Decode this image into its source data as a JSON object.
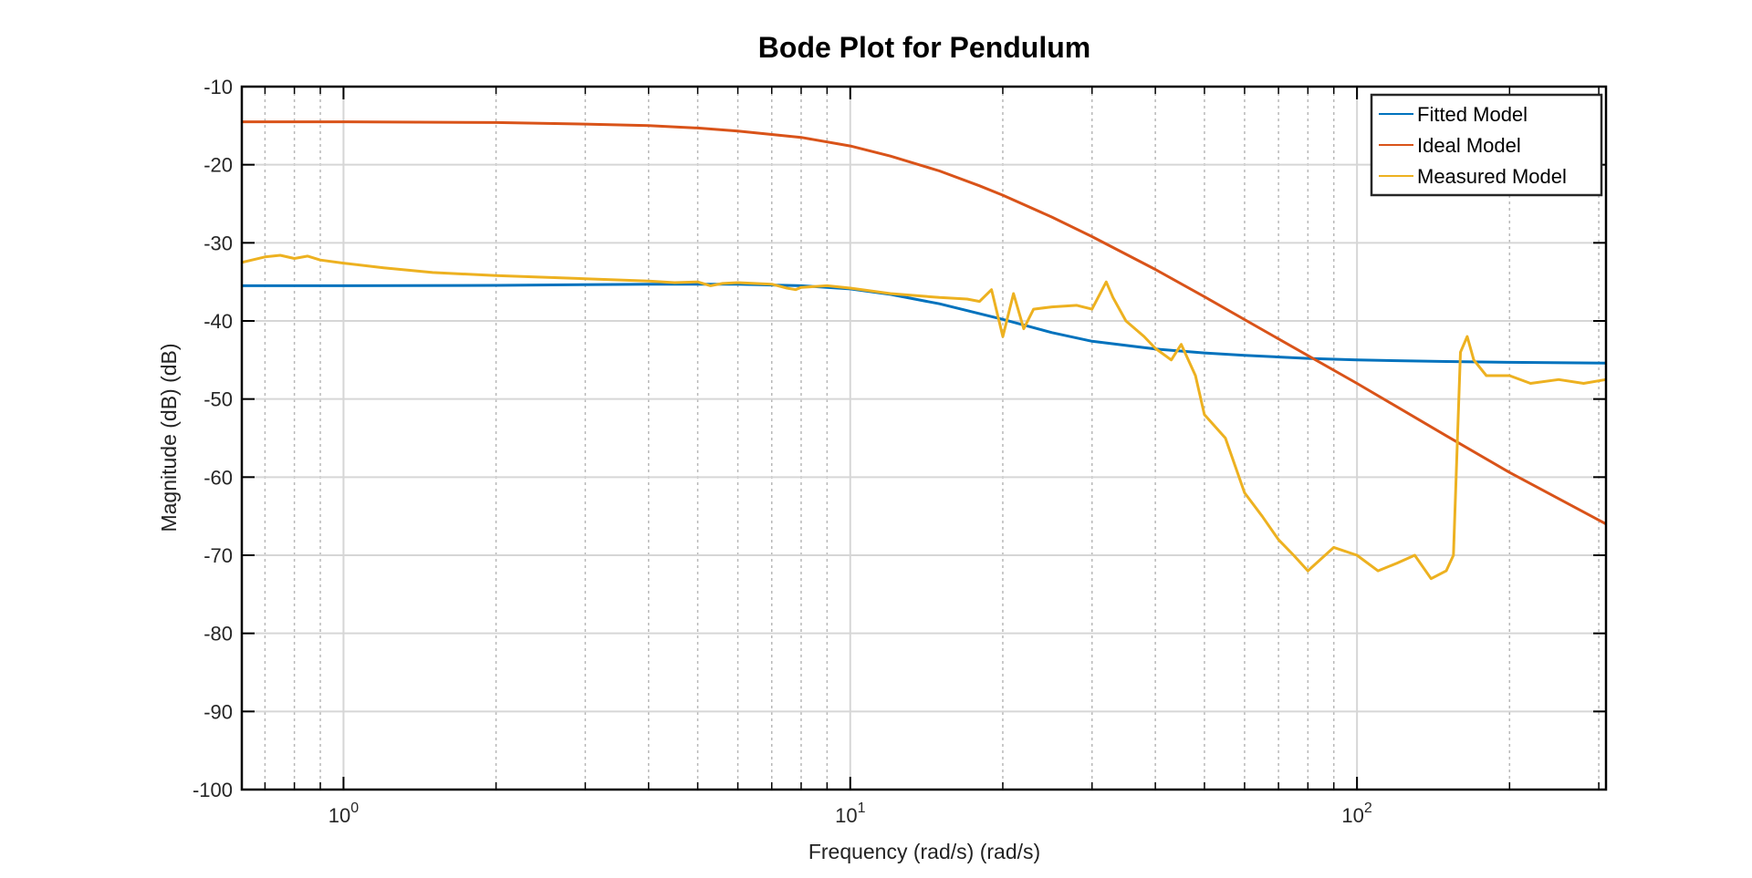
{
  "chart_data": {
    "type": "line",
    "title": "Bode Plot for Pendulum",
    "xlabel": "Frequency (rad/s)  (rad/s)",
    "ylabel": "Magnitude (dB) (dB)",
    "xscale": "log",
    "xlim": [
      0.63,
      310
    ],
    "ylim": [
      -100,
      -10
    ],
    "x_ticks": [
      {
        "value": 1,
        "base": "10",
        "exp": "0"
      },
      {
        "value": 10,
        "base": "10",
        "exp": "1"
      },
      {
        "value": 100,
        "base": "10",
        "exp": "2"
      }
    ],
    "y_ticks": [
      -10,
      -20,
      -30,
      -40,
      -50,
      -60,
      -70,
      -80,
      -90,
      -100
    ],
    "grid": true,
    "minor_grid": true,
    "legend": "top-right",
    "series": [
      {
        "name": "Fitted Model",
        "color": "#0072BD",
        "x": [
          0.63,
          1,
          2,
          4,
          6,
          8,
          10,
          12,
          15,
          20,
          25,
          30,
          40,
          50,
          60,
          80,
          100,
          150,
          200,
          310
        ],
        "y": [
          -35.5,
          -35.5,
          -35.45,
          -35.3,
          -35.3,
          -35.5,
          -35.9,
          -36.6,
          -37.8,
          -39.8,
          -41.5,
          -42.6,
          -43.6,
          -44.1,
          -44.4,
          -44.8,
          -45.0,
          -45.2,
          -45.3,
          -45.4
        ]
      },
      {
        "name": "Ideal Model",
        "color": "#D95319",
        "x": [
          0.63,
          1,
          2,
          3,
          4,
          5,
          6,
          8,
          10,
          12,
          15,
          18,
          20,
          25,
          30,
          40,
          50,
          70,
          100,
          150,
          200,
          310
        ],
        "y": [
          -14.5,
          -14.5,
          -14.6,
          -14.8,
          -15.0,
          -15.3,
          -15.7,
          -16.5,
          -17.6,
          -18.9,
          -20.8,
          -22.7,
          -23.9,
          -26.7,
          -29.2,
          -33.4,
          -36.9,
          -42.3,
          -48.0,
          -54.7,
          -59.4,
          -66.0
        ]
      },
      {
        "name": "Measured Model",
        "color": "#EDB120",
        "x": [
          0.63,
          0.7,
          0.75,
          0.8,
          0.85,
          0.9,
          1.0,
          1.2,
          1.5,
          2,
          3,
          4,
          4.5,
          5,
          5.3,
          5.6,
          6,
          7,
          7.5,
          7.8,
          8,
          9,
          10,
          12,
          15,
          17,
          18,
          19,
          20,
          21,
          22,
          23,
          25,
          28,
          30,
          32,
          33,
          35,
          38,
          40,
          43,
          45,
          48,
          50,
          55,
          60,
          65,
          70,
          75,
          80,
          90,
          100,
          110,
          120,
          130,
          140,
          150,
          155,
          160,
          165,
          170,
          180,
          200,
          220,
          250,
          280,
          310
        ],
        "y": [
          -32.5,
          -31.8,
          -31.6,
          -32.0,
          -31.7,
          -32.2,
          -32.6,
          -33.2,
          -33.8,
          -34.2,
          -34.6,
          -34.9,
          -35.1,
          -35.0,
          -35.5,
          -35.2,
          -35.1,
          -35.3,
          -35.8,
          -36.0,
          -35.7,
          -35.5,
          -35.8,
          -36.5,
          -37.0,
          -37.2,
          -37.5,
          -36.0,
          -42.0,
          -36.5,
          -41.0,
          -38.5,
          -38.2,
          -38.0,
          -38.5,
          -35.0,
          -37.0,
          -40.0,
          -42.0,
          -43.5,
          -45.0,
          -43.0,
          -47.0,
          -52.0,
          -55.0,
          -62.0,
          -65.0,
          -68.0,
          -70.0,
          -72.0,
          -69.0,
          -70.0,
          -72.0,
          -71.0,
          -70.0,
          -73.0,
          -72.0,
          -70.0,
          -44.0,
          -42.0,
          -45.0,
          -47.0,
          -47.0,
          -48.0,
          -47.5,
          -48.0,
          -47.5
        ]
      }
    ]
  }
}
